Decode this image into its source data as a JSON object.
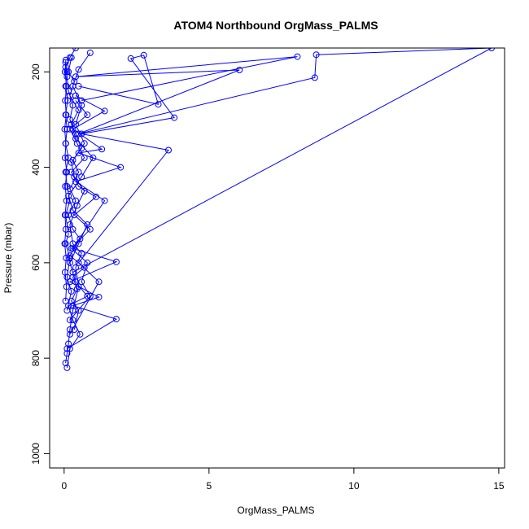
{
  "chart_data": {
    "type": "line",
    "title": "ATOM4 Northbound OrgMass_PALMS",
    "xlabel": "OrgMass_PALMS",
    "ylabel": "Pressure (mbar)",
    "xlim": [
      -0.5,
      15.2
    ],
    "ylim": [
      1030,
      150
    ],
    "y_reversed": true,
    "x_ticks": [
      0,
      5,
      10,
      15
    ],
    "y_ticks": [
      200,
      400,
      600,
      800,
      1000
    ],
    "grid": false,
    "color": "#0000ff",
    "marker": "open-circle",
    "series": [
      {
        "points": [
          [
            0.05,
            810
          ],
          [
            0.1,
            790
          ],
          [
            0.15,
            770
          ],
          [
            0.2,
            740
          ],
          [
            0.3,
            700
          ],
          [
            0.5,
            650
          ],
          [
            0.4,
            610
          ],
          [
            0.6,
            580
          ],
          [
            0.3,
            560
          ],
          [
            0.2,
            520
          ],
          [
            0.45,
            480
          ],
          [
            0.7,
            450
          ],
          [
            0.35,
            420
          ],
          [
            0.25,
            390
          ],
          [
            0.6,
            360
          ],
          [
            0.4,
            330
          ],
          [
            0.2,
            300
          ],
          [
            0.3,
            270
          ],
          [
            0.15,
            240
          ],
          [
            0.1,
            210
          ],
          [
            0.05,
            190
          ],
          [
            0.2,
            170
          ],
          [
            0.4,
            150
          ]
        ]
      },
      {
        "points": [
          [
            0.1,
            820
          ],
          [
            0.2,
            780
          ],
          [
            0.55,
            750
          ],
          [
            0.3,
            720
          ],
          [
            0.15,
            690
          ],
          [
            0.8,
            670
          ],
          [
            0.4,
            640
          ],
          [
            0.2,
            600
          ],
          [
            0.5,
            560
          ],
          [
            0.8,
            520
          ],
          [
            0.3,
            490
          ],
          [
            0.15,
            460
          ],
          [
            0.6,
            420
          ],
          [
            1.0,
            380
          ],
          [
            0.4,
            340
          ],
          [
            0.25,
            310
          ],
          [
            0.5,
            280
          ],
          [
            0.2,
            250
          ],
          [
            0.35,
            220
          ],
          [
            0.15,
            200
          ],
          [
            0.25,
            170
          ]
        ]
      },
      {
        "points": [
          [
            0.1,
            780
          ],
          [
            1.8,
            718
          ],
          [
            0.3,
            690
          ],
          [
            1.2,
            672
          ],
          [
            0.2,
            640
          ],
          [
            1.8,
            598
          ],
          [
            0.3,
            570
          ],
          [
            1.4,
            470
          ],
          [
            0.4,
            430
          ],
          [
            1.95,
            400
          ],
          [
            0.5,
            370
          ],
          [
            1.3,
            362
          ],
          [
            0.3,
            320
          ],
          [
            1.4,
            282
          ],
          [
            0.4,
            250
          ]
        ]
      },
      {
        "points": [
          [
            0.2,
            750
          ],
          [
            1.2,
            640
          ],
          [
            0.5,
            600
          ],
          [
            3.6,
            364
          ],
          [
            0.6,
            330
          ],
          [
            3.8,
            296
          ],
          [
            2.3,
            172
          ],
          [
            2.75,
            165
          ],
          [
            3.25,
            268
          ],
          [
            0.5,
            230
          ]
        ]
      },
      {
        "points": [
          [
            0.3,
            620
          ],
          [
            14.75,
            150
          ],
          [
            8.7,
            164
          ],
          [
            8.65,
            212
          ],
          [
            0.5,
            330
          ],
          [
            6.05,
            196
          ],
          [
            0.4,
            210
          ],
          [
            8.05,
            168
          ],
          [
            0.6,
            260
          ]
        ]
      },
      {
        "points": [
          [
            0.1,
            700
          ],
          [
            0.25,
            660
          ],
          [
            0.1,
            630
          ],
          [
            0.2,
            590
          ],
          [
            0.05,
            560
          ],
          [
            0.15,
            540
          ],
          [
            0.05,
            500
          ],
          [
            0.2,
            470
          ],
          [
            0.1,
            440
          ],
          [
            0.05,
            410
          ],
          [
            0.15,
            380
          ],
          [
            0.05,
            350
          ],
          [
            0.1,
            320
          ],
          [
            0.05,
            290
          ],
          [
            0.12,
            260
          ],
          [
            0.05,
            230
          ],
          [
            0.1,
            200
          ],
          [
            0.05,
            180
          ]
        ]
      },
      {
        "points": [
          [
            0.35,
            740
          ],
          [
            0.5,
            700
          ],
          [
            0.25,
            680
          ],
          [
            0.45,
            655
          ],
          [
            0.3,
            630
          ],
          [
            0.7,
            610
          ],
          [
            0.2,
            585
          ],
          [
            0.55,
            550
          ],
          [
            0.3,
            530
          ],
          [
            0.15,
            500
          ],
          [
            0.4,
            470
          ],
          [
            0.2,
            445
          ],
          [
            0.5,
            410
          ],
          [
            0.3,
            385
          ],
          [
            0.7,
            350
          ],
          [
            0.4,
            310
          ],
          [
            0.6,
            270
          ],
          [
            0.3,
            230
          ],
          [
            0.5,
            195
          ],
          [
            0.9,
            160
          ]
        ]
      },
      {
        "points": [
          [
            0.2,
            720
          ],
          [
            0.9,
            670
          ],
          [
            0.6,
            640
          ],
          [
            0.8,
            600
          ],
          [
            0.25,
            570
          ],
          [
            0.9,
            530
          ],
          [
            0.35,
            500
          ],
          [
            1.1,
            462
          ],
          [
            0.5,
            440
          ],
          [
            0.25,
            410
          ],
          [
            0.7,
            380
          ],
          [
            0.45,
            350
          ],
          [
            0.2,
            320
          ],
          [
            0.8,
            290
          ],
          [
            0.4,
            260
          ]
        ]
      },
      {
        "points": [
          [
            0.05,
            680
          ],
          [
            0.08,
            650
          ],
          [
            0.03,
            620
          ],
          [
            0.07,
            590
          ],
          [
            0.02,
            560
          ],
          [
            0.06,
            530
          ],
          [
            0.03,
            500
          ],
          [
            0.08,
            470
          ],
          [
            0.04,
            440
          ],
          [
            0.09,
            410
          ],
          [
            0.03,
            380
          ],
          [
            0.06,
            350
          ],
          [
            0.02,
            320
          ],
          [
            0.07,
            290
          ],
          [
            0.04,
            260
          ],
          [
            0.08,
            230
          ],
          [
            0.03,
            200
          ],
          [
            0.06,
            175
          ]
        ]
      }
    ]
  }
}
